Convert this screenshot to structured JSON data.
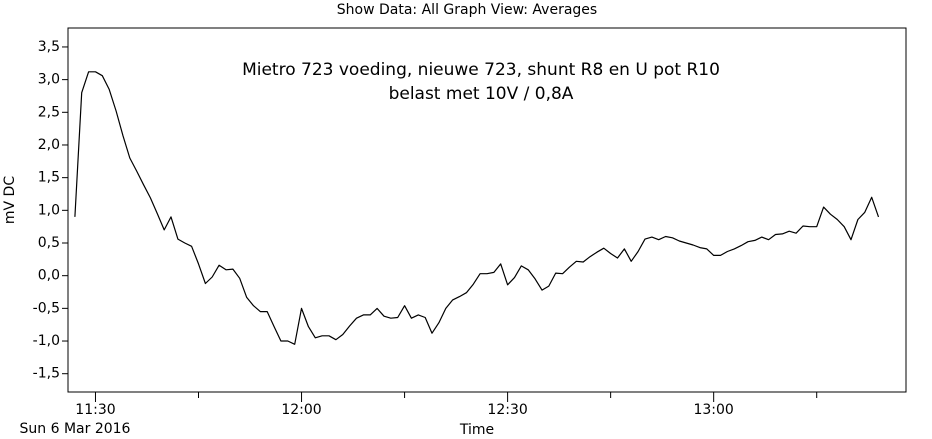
{
  "chart_data": {
    "type": "line",
    "header": "Show Data: All   Graph View: Averages",
    "title": "Mietro 723 voeding, nieuwe 723, shunt R8 en U pot R10",
    "subtitle": "belast met 10V / 0,8A",
    "ylabel": "mV DC",
    "xlabel": "Time",
    "date_label": "Sun 6 Mar 2016",
    "xlim": [
      "11:26",
      "13:28"
    ],
    "xticks": [
      "11:30",
      "12:00",
      "12:30",
      "13:00"
    ],
    "xminor_ticks": [
      "11:45",
      "12:15",
      "12:45",
      "13:15"
    ],
    "ylim": [
      -1.78,
      3.79
    ],
    "yticks": [
      {
        "value": -1.5,
        "label": "-1,5"
      },
      {
        "value": -1,
        "label": "-1,0"
      },
      {
        "value": -0.5,
        "label": "-0,5"
      },
      {
        "value": 0,
        "label": "0,0"
      },
      {
        "value": 0.5,
        "label": "0,5"
      },
      {
        "value": 1,
        "label": "1,0"
      },
      {
        "value": 1.5,
        "label": "1,5"
      },
      {
        "value": 2,
        "label": "2,0"
      },
      {
        "value": 2.5,
        "label": "2,5"
      },
      {
        "value": 3,
        "label": "3,0"
      },
      {
        "value": 3.5,
        "label": "3,5"
      }
    ],
    "color": "#000000",
    "x": [
      "11:27",
      "11:28",
      "11:29",
      "11:30",
      "11:31",
      "11:32",
      "11:33",
      "11:34",
      "11:35",
      "11:36",
      "11:37",
      "11:38",
      "11:39",
      "11:40",
      "11:41",
      "11:42",
      "11:43",
      "11:44",
      "11:45",
      "11:46",
      "11:47",
      "11:48",
      "11:49",
      "11:50",
      "11:51",
      "11:52",
      "11:53",
      "11:54",
      "11:55",
      "11:56",
      "11:57",
      "11:58",
      "11:59",
      "12:00",
      "12:01",
      "12:02",
      "12:03",
      "12:04",
      "12:05",
      "12:06",
      "12:07",
      "12:08",
      "12:09",
      "12:10",
      "12:11",
      "12:12",
      "12:13",
      "12:14",
      "12:15",
      "12:16",
      "12:17",
      "12:18",
      "12:19",
      "12:20",
      "12:21",
      "12:22",
      "12:23",
      "12:24",
      "12:25",
      "12:26",
      "12:27",
      "12:28",
      "12:29",
      "12:30",
      "12:31",
      "12:32",
      "12:33",
      "12:34",
      "12:35",
      "12:36",
      "12:37",
      "12:38",
      "12:39",
      "12:40",
      "12:41",
      "12:42",
      "12:43",
      "12:44",
      "12:45",
      "12:46",
      "12:47",
      "12:48",
      "12:49",
      "12:50",
      "12:51",
      "12:52",
      "12:53",
      "12:54",
      "12:55",
      "12:56",
      "12:57",
      "12:58",
      "12:59",
      "13:00",
      "13:01",
      "13:02",
      "13:03",
      "13:04",
      "13:05",
      "13:06",
      "13:07",
      "13:08",
      "13:09",
      "13:10",
      "13:11",
      "13:12",
      "13:13",
      "13:14",
      "13:15",
      "13:16",
      "13:17",
      "13:18",
      "13:19",
      "13:20",
      "13:21",
      "13:22",
      "13:23",
      "13:24"
    ],
    "values": [
      0.9,
      2.8,
      3.12,
      3.12,
      3.06,
      2.85,
      2.52,
      2.14,
      1.8,
      1.6,
      1.39,
      1.19,
      0.95,
      0.7,
      0.9,
      0.56,
      0.5,
      0.45,
      0.18,
      -0.12,
      -0.02,
      0.16,
      0.09,
      0.1,
      -0.04,
      -0.33,
      -0.46,
      -0.55,
      -0.55,
      -0.78,
      -1.0,
      -1.0,
      -1.05,
      -0.5,
      -0.78,
      -0.95,
      -0.92,
      -0.92,
      -0.98,
      -0.9,
      -0.77,
      -0.65,
      -0.6,
      -0.6,
      -0.5,
      -0.62,
      -0.65,
      -0.64,
      -0.46,
      -0.65,
      -0.6,
      -0.64,
      -0.88,
      -0.72,
      -0.5,
      -0.37,
      -0.32,
      -0.26,
      -0.13,
      0.03,
      0.03,
      0.05,
      0.18,
      -0.14,
      -0.03,
      0.15,
      0.09,
      -0.05,
      -0.22,
      -0.16,
      0.04,
      0.03,
      0.13,
      0.22,
      0.21,
      0.29,
      0.36,
      0.42,
      0.34,
      0.27,
      0.41,
      0.22,
      0.37,
      0.56,
      0.59,
      0.55,
      0.6,
      0.58,
      0.53,
      0.5,
      0.47,
      0.43,
      0.41,
      0.31,
      0.31,
      0.37,
      0.41,
      0.46,
      0.52,
      0.54,
      0.59,
      0.55,
      0.63,
      0.64,
      0.68,
      0.65,
      0.76,
      0.75,
      0.75,
      1.05,
      0.94,
      0.86,
      0.75,
      0.55,
      0.86,
      0.97,
      1.2,
      0.9
    ]
  }
}
